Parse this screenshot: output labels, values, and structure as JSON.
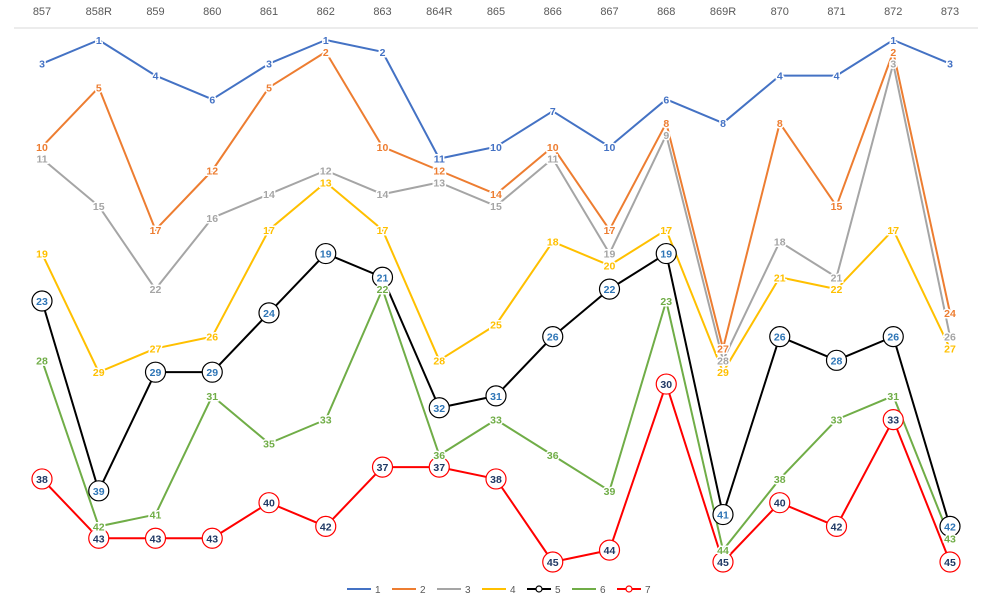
{
  "chart_data": {
    "type": "line",
    "title": "",
    "xlabel": "",
    "ylabel": "",
    "categories": [
      "857",
      "858R",
      "859",
      "860",
      "861",
      "862",
      "863",
      "864R",
      "865",
      "866",
      "867",
      "868",
      "869R",
      "870",
      "871",
      "872",
      "873"
    ],
    "ylim": [
      1,
      45
    ],
    "y_inverted": true,
    "legend_position": "bottom",
    "series": [
      {
        "name": "1",
        "color": "#4472C4",
        "marker": "none",
        "values": [
          3,
          1,
          4,
          6,
          3,
          1,
          2,
          11,
          10,
          7,
          10,
          6,
          8,
          4,
          4,
          1,
          3
        ]
      },
      {
        "name": "2",
        "color": "#ED7D31",
        "marker": "none",
        "values": [
          10,
          5,
          17,
          12,
          5,
          2,
          10,
          12,
          14,
          10,
          17,
          8,
          27,
          8,
          15,
          2,
          24
        ]
      },
      {
        "name": "3",
        "color": "#A5A5A5",
        "marker": "none",
        "values": [
          11,
          15,
          22,
          16,
          14,
          12,
          14,
          13,
          15,
          11,
          19,
          9,
          28,
          18,
          21,
          3,
          26
        ]
      },
      {
        "name": "4",
        "color": "#FFC000",
        "marker": "none",
        "values": [
          19,
          29,
          27,
          26,
          17,
          13,
          17,
          28,
          25,
          18,
          20,
          17,
          29,
          21,
          22,
          17,
          27
        ]
      },
      {
        "name": "5",
        "color": "#000000",
        "marker": "circle",
        "values": [
          23,
          39,
          29,
          29,
          24,
          19,
          21,
          32,
          31,
          26,
          22,
          19,
          41,
          26,
          28,
          26,
          42
        ]
      },
      {
        "name": "6",
        "color": "#70AD47",
        "marker": "none",
        "values": [
          28,
          42,
          41,
          31,
          35,
          33,
          22,
          36,
          33,
          36,
          39,
          23,
          44,
          38,
          33,
          31,
          43
        ]
      },
      {
        "name": "7",
        "color": "#FF0000",
        "marker": "circle",
        "values": [
          38,
          43,
          43,
          43,
          40,
          42,
          37,
          37,
          38,
          45,
          44,
          30,
          45,
          40,
          42,
          33,
          45
        ]
      }
    ]
  }
}
